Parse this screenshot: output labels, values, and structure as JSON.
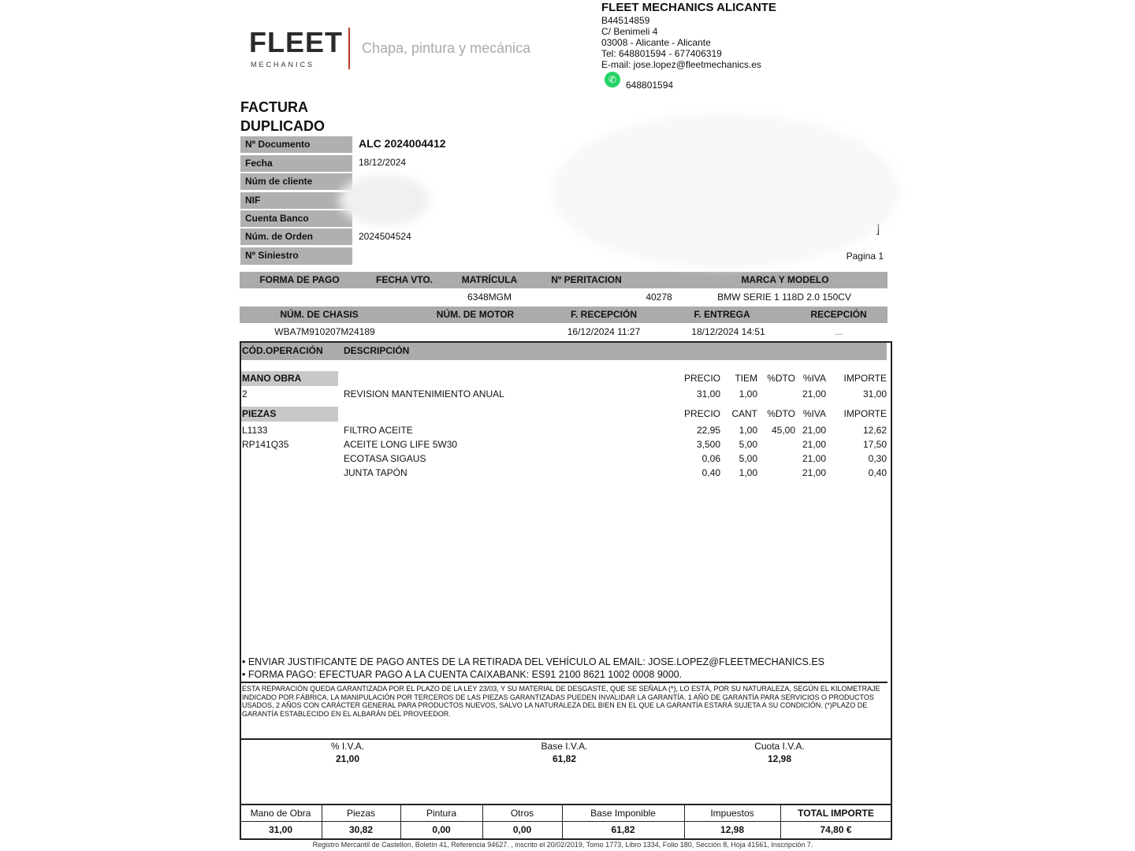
{
  "logo": {
    "brand": "FLEET",
    "sub": "MECHANICS",
    "tagline": "Chapa, pintura y mecánica"
  },
  "company": {
    "name": "FLEET MECHANICS ALICANTE",
    "cif": "B44514859",
    "address": "C/ Benimeli 4",
    "city": "03008 - Alicante - Alicante",
    "tel": "Tel: 648801594 - 677406319",
    "email": "E-mail: jose.lopez@fleetmechanics.es",
    "whatsapp": "648801594",
    "whatsapp_color": "#25d366"
  },
  "doc": {
    "title": "FACTURA",
    "subtitle": "DUPLICADO",
    "page": "Pagina 1",
    "bracket": "]"
  },
  "fields": [
    {
      "label": "Nº Documento",
      "value": "ALC 2024004412"
    },
    {
      "label": "Fecha",
      "value": "18/12/2024"
    },
    {
      "label": "Núm de cliente",
      "value": ""
    },
    {
      "label": "NIF",
      "value": ""
    },
    {
      "label": "Cuenta Banco",
      "value": ""
    },
    {
      "label": "Núm. de Orden",
      "value": "2024504524"
    },
    {
      "label": "Nº Siniestro",
      "value": ""
    }
  ],
  "vehicle1": {
    "headers": [
      "FORMA DE PAGO",
      "FECHA VTO.",
      "MATRÍCULA",
      "Nº PERITACION",
      "MARCA Y MODELO"
    ],
    "values": [
      "",
      "",
      "6348MGM",
      "40278",
      "BMW SERIE 1 118D 2.0 150CV"
    ]
  },
  "vehicle2": {
    "headers": [
      "NÚM. DE CHASIS",
      "NÚM. DE MOTOR",
      "F. RECEPCIÓN",
      "F. ENTREGA",
      "RECEPCIÓN"
    ],
    "values": [
      "WBA7M910207M24189",
      "",
      "16/12/2024 11:27",
      "18/12/2024 14:51",
      "..."
    ]
  },
  "items": {
    "headers": [
      "CÓD.OPERACIÓN",
      "DESCRIPCIÓN"
    ],
    "labor": {
      "title": "MANO OBRA",
      "cols": [
        "PRECIO",
        "TIEM",
        "%DTO",
        "%IVA",
        "IMPORTE"
      ],
      "rows": [
        {
          "code": "2",
          "desc": "REVISION MANTENIMIENTO ANUAL",
          "precio": "31,00",
          "qty": "1,00",
          "dto": "",
          "iva": "21,00",
          "importe": "31,00"
        }
      ]
    },
    "parts": {
      "title": "PIEZAS",
      "cols": [
        "PRECIO",
        "CANT",
        "%DTO",
        "%IVA",
        "IMPORTE"
      ],
      "rows": [
        {
          "code": "L1133",
          "desc": "FILTRO ACEITE",
          "precio": "22,95",
          "qty": "1,00",
          "dto": "45,00",
          "iva": "21,00",
          "importe": "12,62"
        },
        {
          "code": "RP141Q35",
          "desc": "ACEITE LONG LIFE 5W30",
          "precio": "3,500",
          "qty": "5,00",
          "dto": "",
          "iva": "21,00",
          "importe": "17,50"
        },
        {
          "code": "",
          "desc": "ECOTASA SIGAUS",
          "precio": "0,06",
          "qty": "5,00",
          "dto": "",
          "iva": "21,00",
          "importe": "0,30"
        },
        {
          "code": "",
          "desc": "JUNTA TAPÓN",
          "precio": "0,40",
          "qty": "1,00",
          "dto": "",
          "iva": "21,00",
          "importe": "0,40"
        }
      ]
    }
  },
  "notes": [
    "• ENVIAR JUSTIFICANTE DE PAGO ANTES DE LA RETIRADA DEL VEHÍCULO AL EMAIL: JOSE.LOPEZ@FLEETMECHANICS.ES",
    "• FORMA PAGO: EFECTUAR PAGO A LA CUENTA CAIXABANK: ES91 2100 8621 1002 0008 9000."
  ],
  "legal": "ESTA REPARACIÓN QUEDA GARANTIZADA POR EL PLAZO DE LA LEY 23/03, Y SU MATERIAL DE DESGASTE, QUE SE SEÑALA (*), LO ESTÁ, POR SU NATURALEZA, SEGÚN EL KILOMETRAJE INDICADO POR FÁBRICA. LA MANIPULACIÓN POR TERCEROS DE LAS PIEZAS GARANTIZADAS PUEDEN INVALIDAR LA GARANTÍA. 1 AÑO DE GARANTÍA PARA SERVICIOS O PRODUCTOS USADOS, 2 AÑOS CON CARÁCTER GENERAL PARA PRODUCTOS NUEVOS, SALVO LA NATURALEZA DEL BIEN EN EL QUE LA GARANTÍA ESTARÁ SUJETA A SU CONDICIÓN. (*)PLAZO DE GARANTÍA ESTABLECIDO EN EL ALBARÁN DEL PROVEEDOR.",
  "iva": [
    {
      "label": "% I.V.A.",
      "value": "21,00"
    },
    {
      "label": "Base I.V.A.",
      "value": "61,82"
    },
    {
      "label": "Cuota I.V.A.",
      "value": "12,98"
    }
  ],
  "totals": {
    "headers": [
      "Mano de Obra",
      "Piezas",
      "Pintura",
      "Otros",
      "Base Imponible",
      "Impuestos",
      "TOTAL IMPORTE"
    ],
    "values": [
      "31,00",
      "30,82",
      "0,00",
      "0,00",
      "61,82",
      "12,98",
      "74,80 €"
    ]
  },
  "footer": "Registro Mercantil de Castellon, Boletín 41, Referencia 94627. , inscrito el 20/02/2019, Tomo 1773, Libro 1334, Folio 180, Sección 8, Hoja 41561, Inscripción 7."
}
